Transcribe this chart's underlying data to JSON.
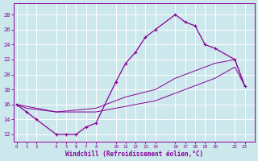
{
  "xlabel": "Windchill (Refroidissement éolien,°C)",
  "bg_color": "#cce8ec",
  "grid_color": "#b0d8de",
  "line_color": "#880099",
  "x_ticks": [
    0,
    1,
    2,
    4,
    5,
    6,
    7,
    8,
    10,
    11,
    12,
    13,
    14,
    16,
    17,
    18,
    19,
    20,
    22,
    23
  ],
  "y_ticks": [
    12,
    14,
    16,
    18,
    20,
    22,
    24,
    26,
    28
  ],
  "xlim": [
    -0.3,
    24.0
  ],
  "ylim": [
    11.0,
    29.5
  ],
  "line1_x": [
    0,
    1,
    2,
    4,
    5,
    6,
    7,
    8,
    10,
    11,
    12,
    13,
    14,
    16,
    17,
    18,
    19,
    20,
    22,
    23
  ],
  "line1_y": [
    16,
    15,
    14.0,
    12,
    12,
    12,
    13,
    13.5,
    19,
    21.5,
    23,
    25,
    26,
    28,
    27,
    26.5,
    24,
    23.5,
    22,
    18.5
  ],
  "line2_x": [
    0,
    1,
    4,
    8,
    11,
    14,
    16,
    18,
    19,
    20,
    22,
    23
  ],
  "line2_y": [
    16,
    15.5,
    15,
    15.5,
    17,
    18,
    19.5,
    20.5,
    21,
    21.5,
    22,
    18.5
  ],
  "line3_x": [
    0,
    4,
    8,
    14,
    16,
    18,
    20,
    22,
    23
  ],
  "line3_y": [
    16,
    15,
    15,
    16.5,
    17.5,
    18.5,
    19.5,
    21,
    18.5
  ]
}
